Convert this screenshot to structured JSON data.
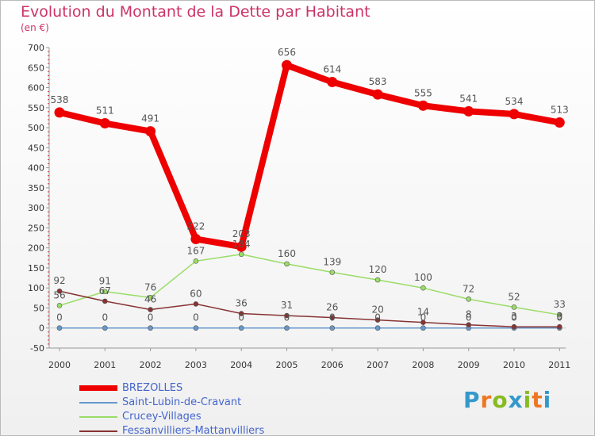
{
  "title": "Evolution du Montant de la Dette par Habitant",
  "subtitle": "(en €)",
  "logo": {
    "letters": [
      "P",
      "r",
      "o",
      "x",
      "i",
      "t",
      "i"
    ],
    "colors": [
      "#3399cc",
      "#ee7722",
      "#88bb22",
      "#3399cc",
      "#88bb22",
      "#ee7722",
      "#3399cc"
    ]
  },
  "chart_data": {
    "type": "line",
    "title": "Evolution du Montant de la Dette par Habitant",
    "ylabel": "(en €)",
    "xlabel": "",
    "ylim": [
      -50,
      700
    ],
    "yticks": [
      -50,
      0,
      50,
      100,
      150,
      200,
      250,
      300,
      350,
      400,
      450,
      500,
      550,
      600,
      650,
      700
    ],
    "categories": [
      "2000",
      "2001",
      "2002",
      "2003",
      "2004",
      "2005",
      "2006",
      "2007",
      "2008",
      "2009",
      "2010",
      "2011"
    ],
    "grid": false,
    "legend": "bottom-left",
    "series": [
      {
        "name": "BREZOLLES",
        "color": "#ee0000",
        "values": [
          538,
          511,
          491,
          222,
          203,
          656,
          614,
          583,
          555,
          541,
          534,
          513
        ],
        "labels": [
          "538",
          "511",
          "491",
          "222",
          "203",
          "656",
          "614",
          "583",
          "555",
          "541",
          "534",
          "513"
        ]
      },
      {
        "name": "Saint-Lubin-de-Cravant",
        "color": "#6699cc",
        "values": [
          0,
          0,
          0,
          0,
          0,
          0,
          0,
          0,
          0,
          0,
          0,
          0
        ],
        "labels": [
          "0",
          "0",
          "0",
          "0",
          "0",
          "0",
          "0",
          "0",
          "0",
          "0",
          "0",
          "0"
        ]
      },
      {
        "name": "Crucey-Villages",
        "color": "#99dd66",
        "values": [
          56,
          91,
          76,
          167,
          184,
          160,
          139,
          120,
          100,
          72,
          52,
          33
        ],
        "labels": [
          "56",
          "91",
          "76",
          "167",
          "184",
          "160",
          "139",
          "120",
          "100",
          "72",
          "52",
          "33"
        ]
      },
      {
        "name": "Fessanvilliers-Mattanvilliers",
        "color": "#883333",
        "values": [
          92,
          67,
          46,
          60,
          36,
          31,
          26,
          20,
          14,
          8,
          3,
          3
        ],
        "labels": [
          "92",
          "67",
          "46",
          "60",
          "36",
          "31",
          "26",
          "20",
          "14",
          "8",
          "3",
          "3"
        ]
      }
    ]
  }
}
